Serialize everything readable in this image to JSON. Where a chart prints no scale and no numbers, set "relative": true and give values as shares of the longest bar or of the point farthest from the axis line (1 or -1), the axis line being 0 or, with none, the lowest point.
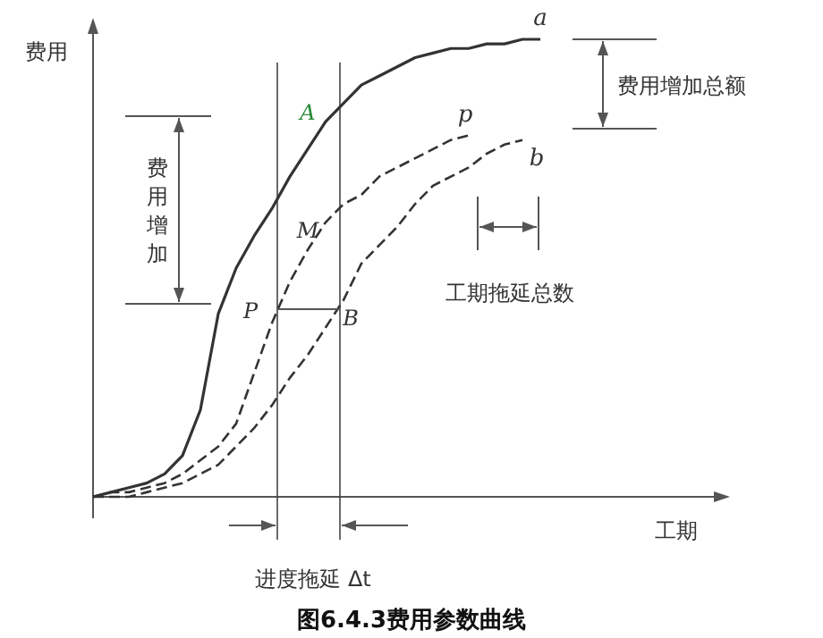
{
  "chart_data": {
    "type": "line",
    "relative": true,
    "title": "图6.4.3费用参数曲线",
    "xlabel": "工期",
    "ylabel": "费用",
    "categories": [
      null,
      null,
      null,
      null,
      null,
      null,
      null,
      null,
      null,
      null,
      null,
      null,
      null,
      null,
      null,
      null,
      null,
      null,
      null,
      null,
      null,
      null,
      null,
      null,
      null,
      null,
      null,
      null,
      null,
      null,
      null,
      null,
      null,
      null,
      null
    ],
    "series": [
      {
        "name": "a",
        "color": "#333333",
        "line_style": "solid",
        "values": [
          0,
          0.01,
          0.02,
          0.03,
          0.05,
          0.09,
          0.19,
          0.4,
          0.5,
          0.57,
          0.63,
          0.7,
          0.76,
          0.82,
          0.86,
          0.9,
          0.92,
          0.94,
          0.96,
          0.97,
          0.98,
          0.98,
          0.99,
          0.99,
          1.0,
          1.0,
          null,
          null,
          null,
          null,
          null,
          null,
          null,
          null,
          null
        ]
      },
      {
        "name": "p",
        "color": "#333333",
        "line_style": "dashed",
        "values": [
          0,
          0.01,
          0.01,
          0.02,
          0.03,
          0.05,
          0.08,
          0.11,
          0.16,
          0.27,
          0.38,
          0.47,
          0.54,
          0.6,
          0.64,
          0.66,
          0.7,
          0.72,
          0.74,
          0.76,
          0.78,
          0.79,
          null,
          null,
          null,
          null,
          null,
          null,
          null,
          null,
          null,
          null,
          null,
          null,
          null
        ]
      },
      {
        "name": "b",
        "color": "#333333",
        "line_style": "dashed",
        "values": [
          0,
          0,
          0,
          0.01,
          0.02,
          0.03,
          0.05,
          0.07,
          0.11,
          0.15,
          0.2,
          0.26,
          0.31,
          0.37,
          0.43,
          0.51,
          0.55,
          0.59,
          0.64,
          0.68,
          0.7,
          0.72,
          0.75,
          0.77,
          0.78,
          null,
          null,
          null,
          null,
          null,
          null,
          null,
          null,
          null,
          null
        ]
      }
    ],
    "annotations": [
      "A",
      "M",
      "P",
      "B",
      "费用增加",
      "费用增加总额",
      "工期拖延总数",
      "进度拖延 Δt"
    ]
  }
}
